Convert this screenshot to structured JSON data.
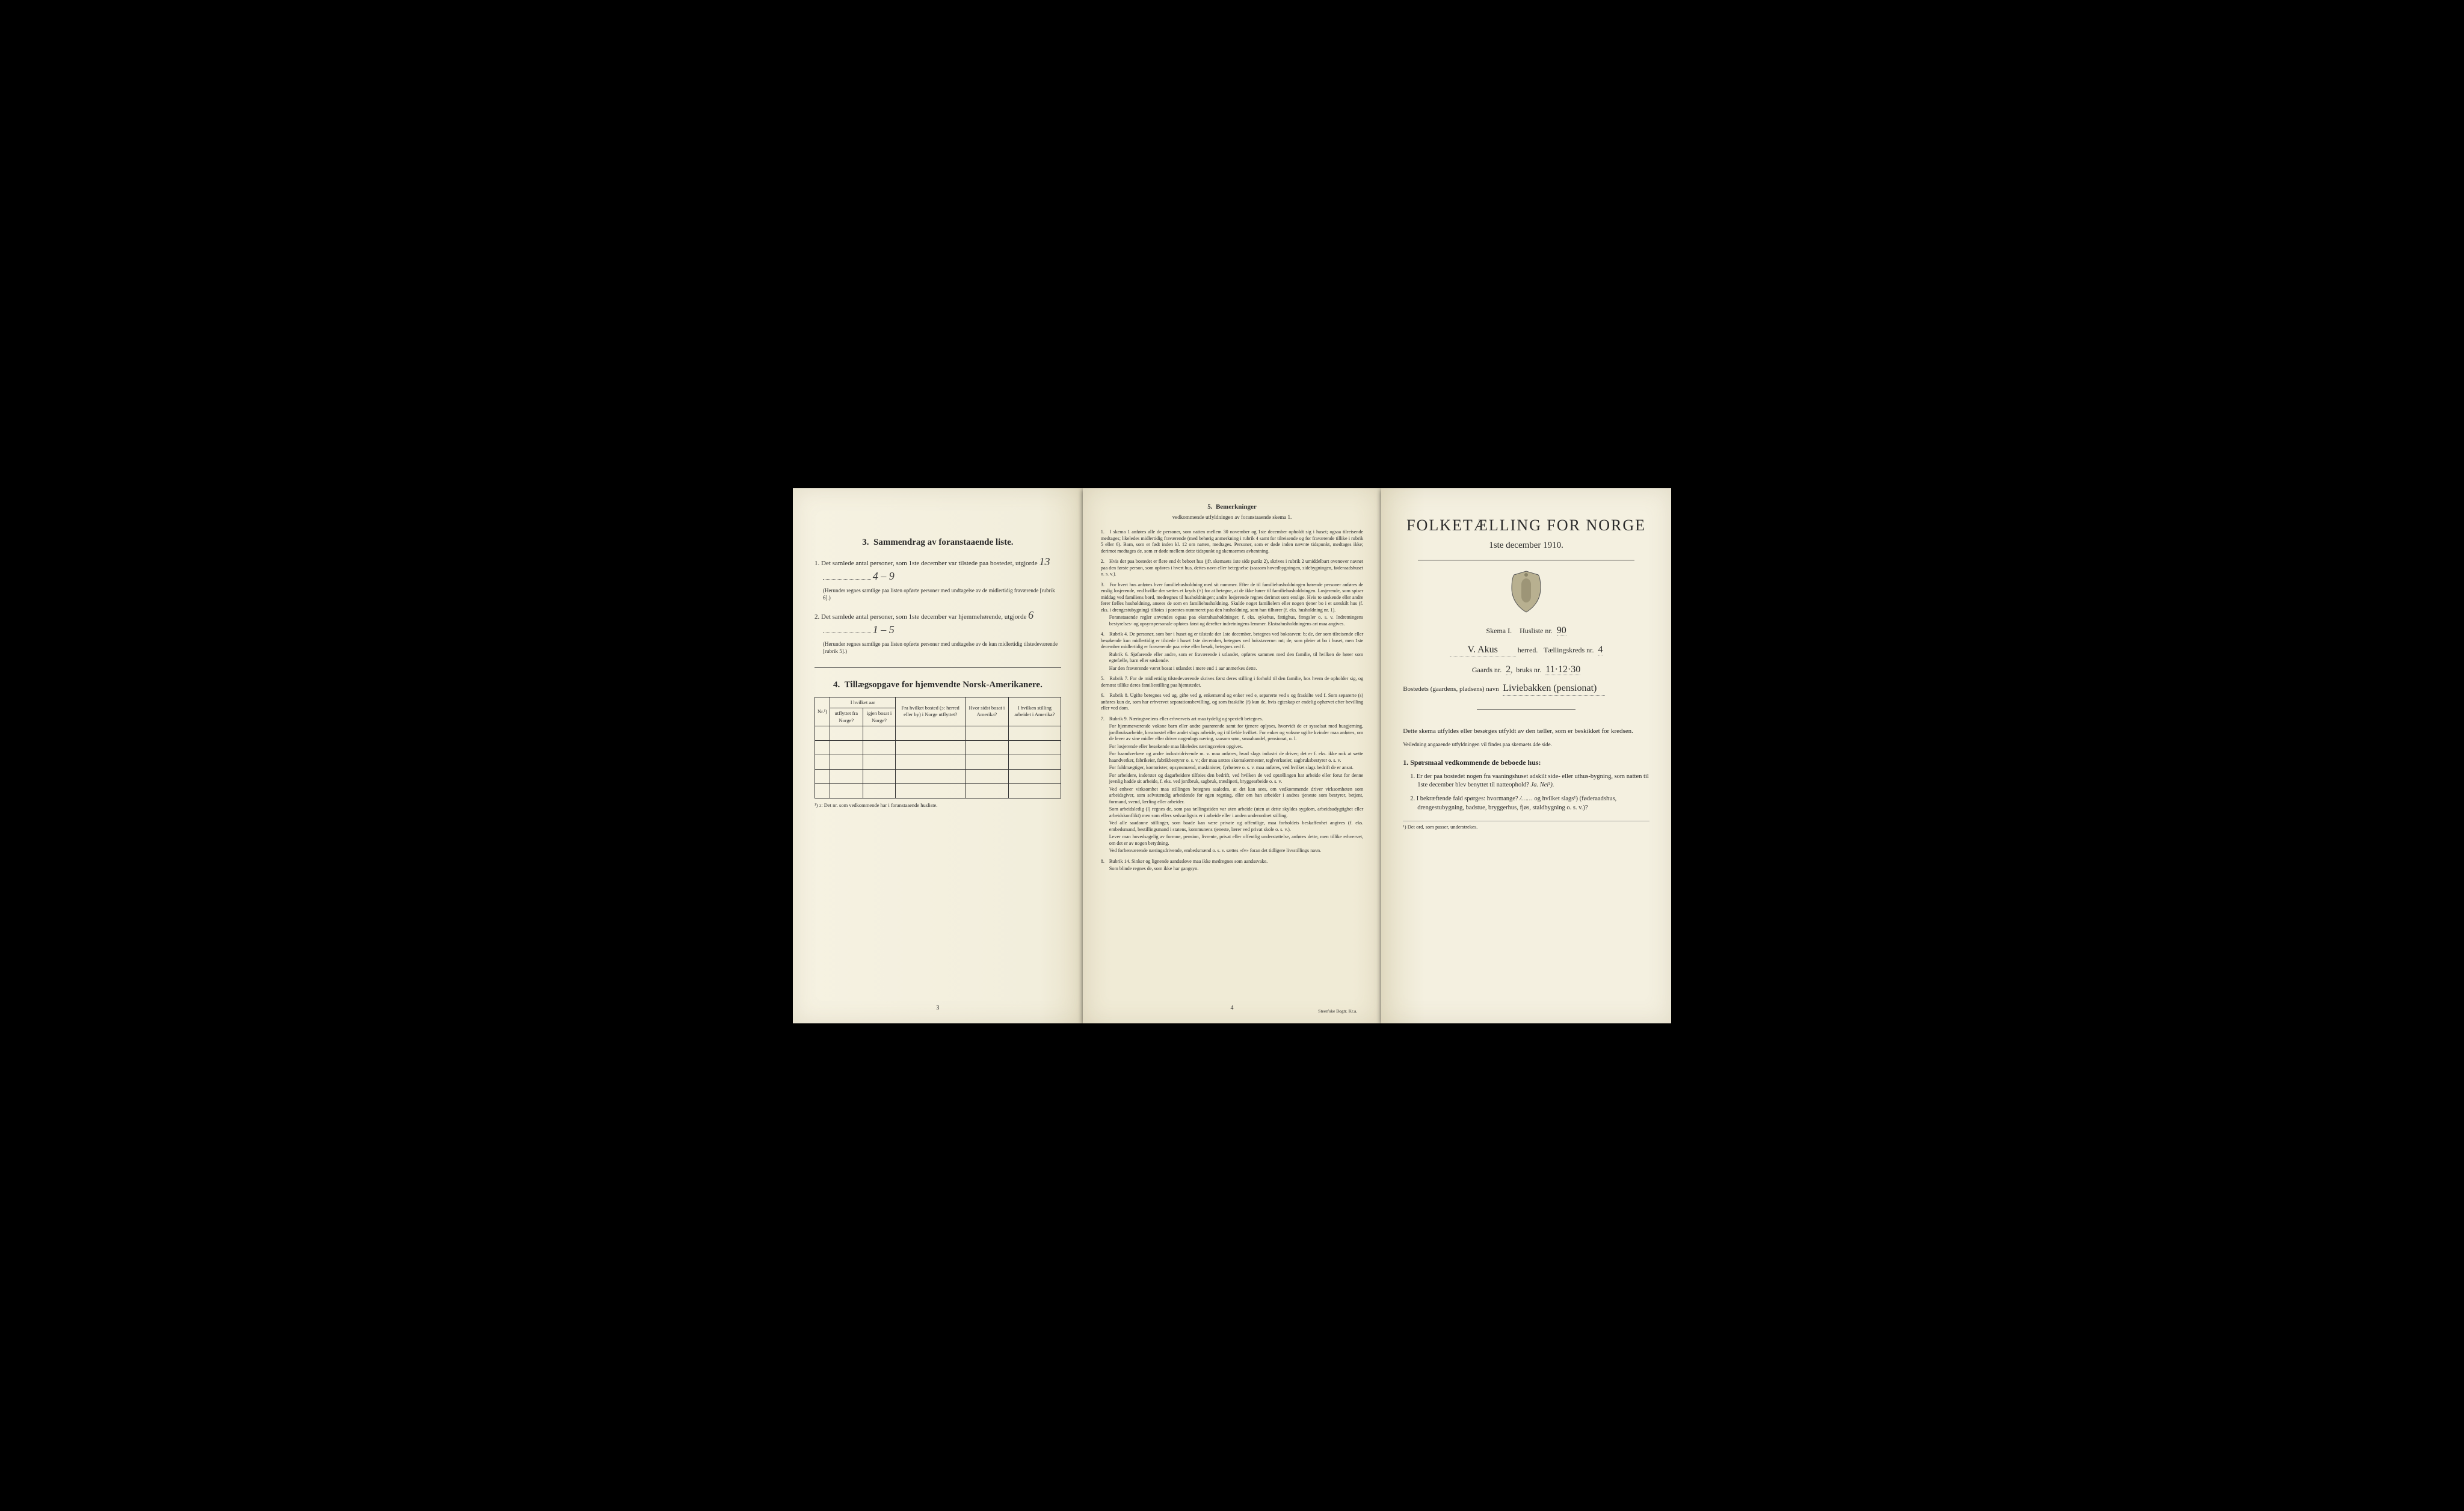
{
  "colors": {
    "paper": "#f4f0e0",
    "ink": "#2a2a2a",
    "hand": "#3a3a3a",
    "border": "#333333",
    "bg": "#000000"
  },
  "left": {
    "section3": {
      "num": "3.",
      "title": "Sammendrag av foranstaaende liste."
    },
    "q1": {
      "n": "1.",
      "text": "Det samlede antal personer, som 1ste december var tilstede paa bostedet, utgjorde",
      "hand": "13",
      "hand2": "4 – 9"
    },
    "q1note": "(Herunder regnes samtlige paa listen opførte personer med undtagelse av de midlertidig fraværende [rubrik 6].)",
    "q2": {
      "n": "2.",
      "text": "Det samlede antal personer, som 1ste december var hjemmehørende, utgjorde",
      "hand": "6",
      "hand2": "1 – 5"
    },
    "q2note": "(Herunder regnes samtlige paa listen opførte personer med undtagelse av de kun midlertidig tilstedeværende [rubrik 5].)",
    "section4": {
      "num": "4.",
      "title": "Tillægsopgave for hjemvendte Norsk-Amerikanere."
    },
    "table": {
      "headers": {
        "nr": "Nr.¹)",
        "col2_top": "I hvilket aar",
        "col2a": "utflyttet fra Norge?",
        "col2b": "igjen bosat i Norge?",
        "col3": "Fra hvilket bosted (ɔ: herred eller by) i Norge utflyttet?",
        "col4": "Hvor sidst bosat i Amerika?",
        "col5": "I hvilken stilling arbeidet i Amerika?"
      },
      "rows": 5
    },
    "tablefoot": "¹) ɔ: Det nr. som vedkommende har i foranstaaende husliste.",
    "pagenum": "3"
  },
  "center": {
    "num": "5.",
    "title": "Bemerkninger",
    "sub": "vedkommende utfyldningen av foranstaaende skema 1.",
    "items": [
      {
        "n": "1.",
        "t": "I skema 1 anføres alle de personer, som natten mellem 30 november og 1ste december opholdt sig i huset; ogsaa tilreisende medtages; likeledes midlertidig fraværende (med behørig anmerkning i rubrik 4 samt for tilreisende og for fraværende tillike i rubrik 5 eller 6). Barn, som er født inden kl. 12 om natten, medtages. Personer, som er døde inden nævnte tidspunkt, medtages ikke; derimot medtages de, som er døde mellem dette tidspunkt og skemaernes avhentning."
      },
      {
        "n": "2.",
        "t": "Hvis der paa bostedet er flere end ét beboet hus (jfr. skemaets 1ste side punkt 2), skrives i rubrik 2 umiddelbart ovenover navnet paa den første person, som opføres i hvert hus, dettes navn eller betegnelse (saasom hovedbygningen, sidebygningen, føderaadshuset o. s. v.)."
      },
      {
        "n": "3.",
        "t": "For hvert hus anføres hver familiehusholdning med sit nummer. Efter de til familiehusholdningen hørende personer anføres de enslig losjerende, ved hvilke der sættes et kryds (×) for at betegne, at de ikke hører til familiehusholdningen. Losjerende, som spiser middag ved familiens bord, medregnes til husholdningen; andre losjerende regnes derimot som enslige. Hvis to søskende eller andre fører fælles husholdning, ansees de som en familiehusholdning. Skulde noget familielem eller nogen tjener bo i et særskilt hus (f. eks. i drengestubygning) tilføies i parentes nummeret paa den husholdning, som han tilhører (f. eks. husholdning nr. 1).",
        "p2": "Foranstaaende regler anvendes ogsaa paa ekstrahusholdninger, f. eks. sykehus, fattighus, fængsler o. s. v. Indretningens bestyrelses- og opsynspersonale opføres først og derefter indretningens lemmer. Ekstrahusholdningens art maa angives."
      },
      {
        "n": "4.",
        "t": "Rubrik 4. De personer, som bor i huset og er tilstede der 1ste december, betegnes ved bokstaven: b; de, der som tilreisende eller besøkende kun midlertidig er tilstede i huset 1ste december, betegnes ved bokstaverne: mt; de, som pleier at bo i huset, men 1ste december midlertidig er fraværende paa reise eller besøk, betegnes ved f.",
        "p2": "Rubrik 6. Sjøfarende eller andre, som er fraværende i utlandet, opføres sammen med den familie, til hvilken de hører som egtefælle, barn eller søskende.",
        "p3": "Har den fraværende været bosat i utlandet i mere end 1 aar anmerkes dette."
      },
      {
        "n": "5.",
        "t": "Rubrik 7. For de midlertidig tilstedeværende skrives først deres stilling i forhold til den familie, hos hvem de opholder sig, og dernæst tillike deres familiestilling paa hjemstedet."
      },
      {
        "n": "6.",
        "t": "Rubrik 8. Ugifte betegnes ved ug, gifte ved g, enkemænd og enker ved e, separerte ved s og fraskilte ved f. Som separerte (s) anføres kun de, som har erhvervet separationsbevilling, og som fraskilte (f) kun de, hvis egteskap er endelig ophævet efter bevilling eller ved dom."
      },
      {
        "n": "7.",
        "t": "Rubrik 9. Næringsveiens eller erhvervets art maa tydelig og specielt betegnes.",
        "p2": "For hjemmeværende voksne barn eller andre paarørende samt for tjenere oplyses, hvorvidt de er sysselsat med husgjerning, jordbruksarbeide, kreaturstel eller andet slags arbeide, og i tilfælde hvilket. For enker og voksne ugifte kvinder maa anføres, om de lever av sine midler eller driver nogenlags næring, saasom søm, smaahandel, pensionat, o. l.",
        "p3": "For losjerende eller besøkende maa likeledes næringsveien opgives.",
        "p4": "For haandverkere og andre industridrivende m. v. maa anføres, hvad slags industri de driver; det er f. eks. ikke nok at sætte haandverker, fabrikeier, fabrikbestyrer o. s. v.; der maa sættes skomakermester, teglverkseier, sagbruksbestyrer o. s. v.",
        "p5": "For fuldmægtiger, kontorister, opsynsmænd, maskinister, fyrbøtere o. s. v. maa anføres, ved hvilket slags bedrift de er ansat.",
        "p6": "For arbeidere, inderster og dagarbeidere tilføies den bedrift, ved hvilken de ved optællingen har arbeide eller forut for denne jevnlig hadde sit arbeide, f. eks. ved jordbruk, sagbruk, træsliperi, bryggearbeide o. s. v.",
        "p7": "Ved enhver virksomhet maa stillingen betegnes saaledes, at det kan sees, om vedkommende driver virksomheten som arbeidsgiver, som selvstændig arbeidende for egen regning, eller om han arbeider i andres tjeneste som bestyrer, betjent, formand, svend, lærling eller arbeider.",
        "p8": "Som arbeidsledig (l) regnes de, som paa tællingstiden var uten arbeide (uten at dette skyldes sygdom, arbeidsudygtighet eller arbeidskonflikt) men som ellers sedvanligvis er i arbeide eller i anden underordnet stilling.",
        "p9": "Ved alle saadanne stillinger, som baade kan være private og offentlige, maa forholdets beskaffenhet angives (f. eks. embedsmand, bestillingsmand i statens, kommunens tjeneste, lærer ved privat skole o. s. v.).",
        "p10": "Lever man hovedsagelig av formue, pension, livrente, privat eller offentlig understøttelse, anføres dette, men tillike erhvervet, om det er av nogen betydning.",
        "p11": "Ved forhenværende næringsdrivende, embedsmænd o. s. v. sættes «fv» foran det tidligere livsstillings navn."
      },
      {
        "n": "8.",
        "t": "Rubrik 14. Sinker og lignende aandssløve maa ikke medregnes som aandssvake.",
        "p2": "Som blinde regnes de, som ikke har gangsyn."
      }
    ],
    "pagenum": "4",
    "imprint": "Steen'ske Bogtr. Kr.a."
  },
  "right": {
    "title": "FOLKETÆLLING FOR NORGE",
    "date": "1ste december 1910.",
    "schema": {
      "label": "Skema I.",
      "huslabel": "Husliste nr.",
      "husnr": "90"
    },
    "herred": {
      "hand": "V. Akus",
      "label": "herred.",
      "kredslabel": "Tællingskreds nr.",
      "kredsnr": "4"
    },
    "gaards": {
      "label": "Gaards nr.",
      "gnr": "2",
      "blabel": "bruks nr.",
      "bnr": "11·12·30"
    },
    "bosted": {
      "label": "Bostedets (gaardens, pladsens) navn",
      "hand": "Liviebakken (pensionat)"
    },
    "bodytext": "Dette skema utfyldes eller besørges utfyldt av den tæller, som er beskikket for kredsen.",
    "sub": "Veiledning angaaende utfyldningen vil findes paa skemaets 4de side.",
    "secnum": "1.",
    "sectitle": "Spørsmaal vedkommende de beboede hus:",
    "ques": [
      {
        "n": "1.",
        "t": "Er der paa bostedet nogen fra vaaningshuset adskilt side- eller uthus-bygning, som natten til 1ste december blev benyttet til natteophold?",
        "ans": "Ja. Nei¹)."
      },
      {
        "n": "2.",
        "t": "I bekræftende fald spørges: hvormange?",
        "blank": "/……",
        "t2": "og hvilket slags¹) (føderaadshus, drengestubygning, badstue, bryggerhus, fjøs, staldbygning o. s. v.)?"
      }
    ],
    "footnote": "¹) Det ord, som passer, understrekes."
  }
}
